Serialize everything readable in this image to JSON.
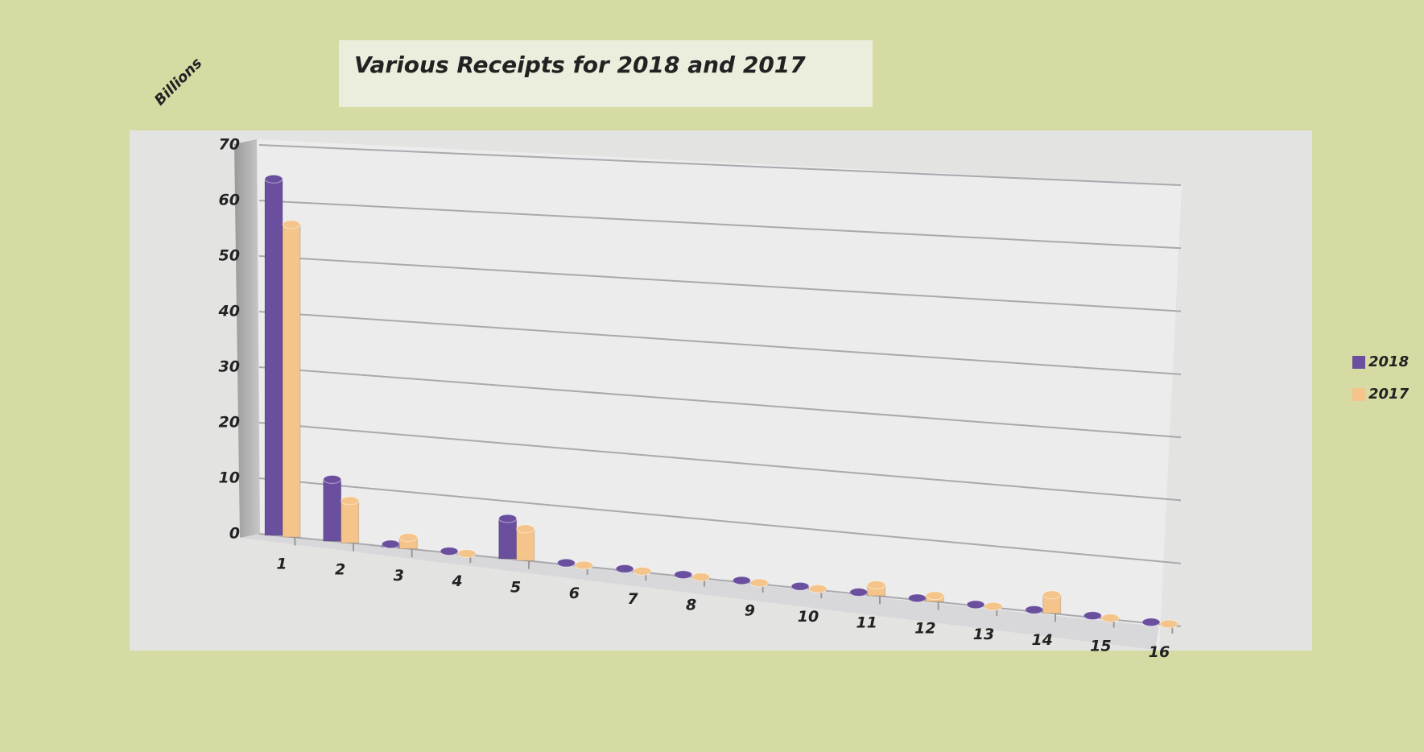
{
  "chart_data": {
    "type": "bar",
    "title": "Various Receipts for 2018 and 2017",
    "y_label": "Billions",
    "categories": [
      "1",
      "2",
      "3",
      "4",
      "5",
      "6",
      "7",
      "8",
      "9",
      "10",
      "11",
      "12",
      "13",
      "14",
      "15",
      "16"
    ],
    "series": [
      {
        "name": "2018",
        "color": "#6a4f9e",
        "values": [
          64,
          11,
          0.5,
          0.3,
          7,
          0.3,
          0.3,
          0.3,
          0.3,
          0.3,
          0.3,
          0.3,
          0.2,
          0.3,
          0.3,
          0.2
        ]
      },
      {
        "name": "2017",
        "color": "#f5c48a",
        "values": [
          56,
          7.5,
          2,
          0.2,
          5.5,
          0.2,
          0.2,
          0.2,
          0.2,
          0.2,
          1.8,
          1,
          0.2,
          3,
          0.2,
          0.2
        ]
      }
    ],
    "ylim": [
      0,
      70
    ],
    "yticks": [
      0,
      10,
      20,
      30,
      40,
      50,
      60,
      70
    ],
    "grid": true,
    "legend": "right"
  }
}
